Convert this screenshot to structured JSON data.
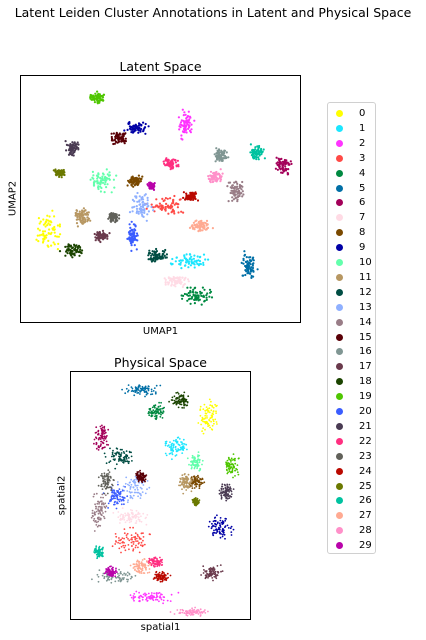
{
  "figure": {
    "title": "Latent Leiden Cluster Annotations in Latent and Physical Space"
  },
  "chart_data": [
    {
      "type": "scatter",
      "title": "Latent Space",
      "xlabel": "UMAP1",
      "ylabel": "UMAP2",
      "ticks": "none",
      "grid": false
    },
    {
      "type": "scatter",
      "title": "Physical Space",
      "xlabel": "spatial1",
      "ylabel": "spatial2",
      "ticks": "none",
      "grid": false
    }
  ],
  "legend": {
    "placement": "right",
    "items": [
      {
        "label": "0",
        "color": "#ffff00"
      },
      {
        "label": "1",
        "color": "#1ce6ff"
      },
      {
        "label": "2",
        "color": "#ff34ff"
      },
      {
        "label": "3",
        "color": "#ff4a46"
      },
      {
        "label": "4",
        "color": "#008941"
      },
      {
        "label": "5",
        "color": "#006fa6"
      },
      {
        "label": "6",
        "color": "#a30059"
      },
      {
        "label": "7",
        "color": "#ffdbe5"
      },
      {
        "label": "8",
        "color": "#7a4900"
      },
      {
        "label": "9",
        "color": "#0000a6"
      },
      {
        "label": "10",
        "color": "#63ffac"
      },
      {
        "label": "11",
        "color": "#b79762"
      },
      {
        "label": "12",
        "color": "#004d43"
      },
      {
        "label": "13",
        "color": "#8fb0ff"
      },
      {
        "label": "14",
        "color": "#997d87"
      },
      {
        "label": "15",
        "color": "#5a0007"
      },
      {
        "label": "16",
        "color": "#809693"
      },
      {
        "label": "17",
        "color": "#6a3a4c"
      },
      {
        "label": "18",
        "color": "#1b4400"
      },
      {
        "label": "19",
        "color": "#4fc601"
      },
      {
        "label": "20",
        "color": "#3b5dff"
      },
      {
        "label": "21",
        "color": "#4a3b53"
      },
      {
        "label": "22",
        "color": "#ff2f80"
      },
      {
        "label": "23",
        "color": "#61615a"
      },
      {
        "label": "24",
        "color": "#ba0900"
      },
      {
        "label": "25",
        "color": "#6b7900"
      },
      {
        "label": "26",
        "color": "#00c2a0"
      },
      {
        "label": "27",
        "color": "#ffaa92"
      },
      {
        "label": "28",
        "color": "#ff90c9"
      },
      {
        "label": "29",
        "color": "#b903aa"
      }
    ]
  }
}
